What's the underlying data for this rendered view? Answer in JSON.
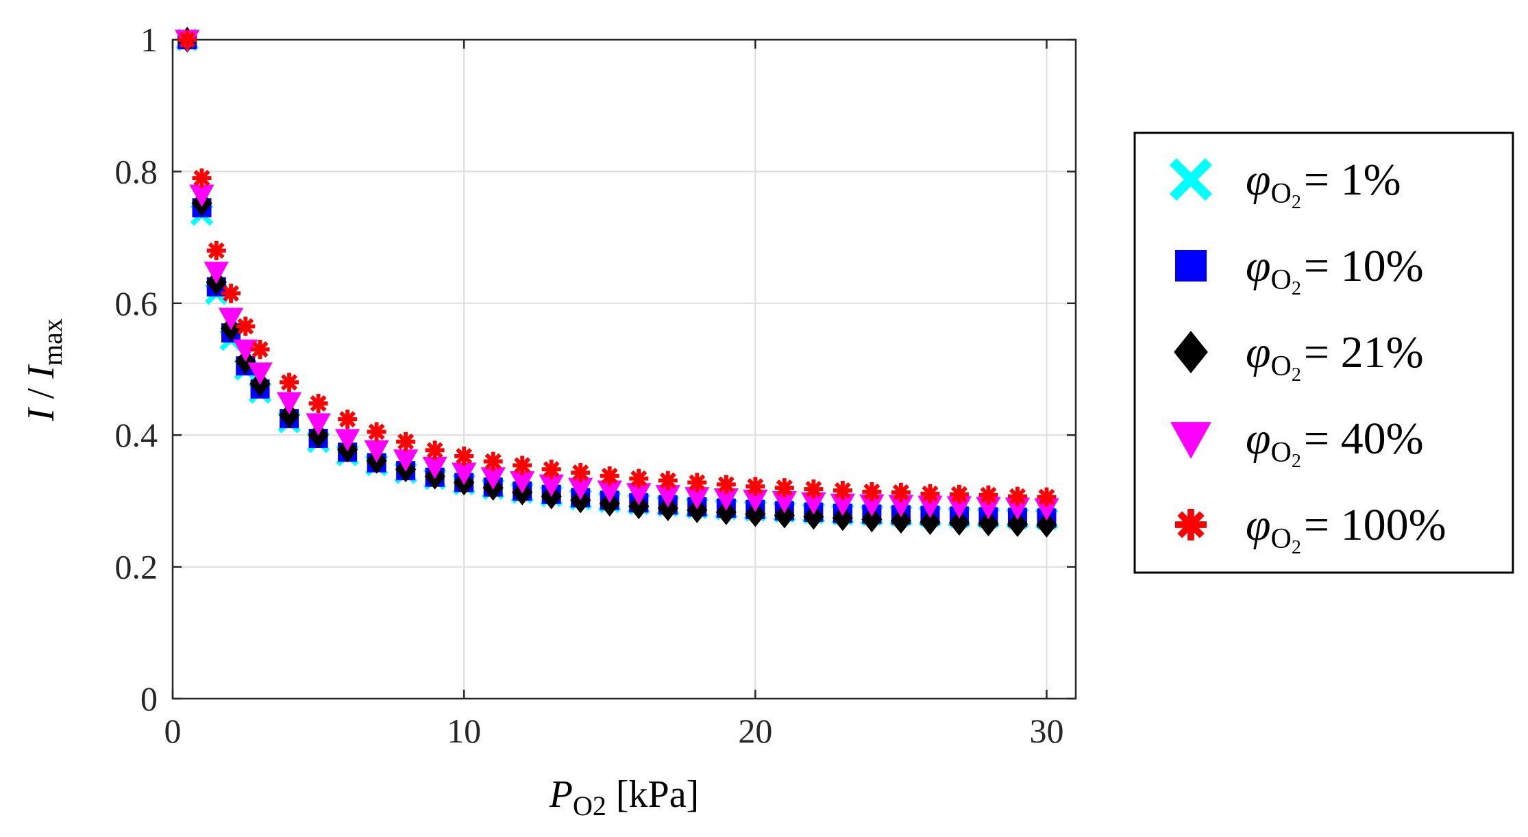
{
  "chart_data": {
    "type": "scatter",
    "title": "",
    "xlabel": {
      "main": "P",
      "sub": "O2",
      "unit": " [kPa]"
    },
    "ylabel": {
      "part1": "I",
      "sep": " / ",
      "part2": "I",
      "sub": "max"
    },
    "xlim": [
      0,
      31
    ],
    "ylim": [
      0,
      1
    ],
    "xticks": [
      "0",
      "10",
      "20",
      "30"
    ],
    "xtick_values": [
      0,
      10,
      20,
      30
    ],
    "yticks": [
      "0",
      "0.2",
      "0.4",
      "0.6",
      "0.8",
      "1"
    ],
    "ytick_values": [
      0,
      0.2,
      0.4,
      0.6,
      0.8,
      1
    ],
    "grid": true,
    "legend_position": "outside-right",
    "legend_symbol": "φ",
    "legend_sub": "O",
    "legend_subsub": "2",
    "x": [
      0.5,
      1,
      1.5,
      2,
      2.5,
      3,
      4,
      5,
      6,
      7,
      8,
      9,
      10,
      11,
      12,
      13,
      14,
      15,
      16,
      17,
      18,
      19,
      20,
      21,
      22,
      23,
      24,
      25,
      26,
      27,
      28,
      29,
      30
    ],
    "series": [
      {
        "name": "φO2 = 1%",
        "value_label": "= 1%",
        "marker": "x",
        "color": "#00ffff",
        "values": [
          1.0,
          0.735,
          0.615,
          0.545,
          0.5,
          0.465,
          0.42,
          0.39,
          0.37,
          0.355,
          0.343,
          0.334,
          0.326,
          0.319,
          0.313,
          0.308,
          0.303,
          0.299,
          0.296,
          0.293,
          0.29,
          0.288,
          0.286,
          0.284,
          0.282,
          0.28,
          0.279,
          0.278,
          0.277,
          0.276,
          0.275,
          0.274,
          0.273
        ]
      },
      {
        "name": "φO2 = 10%",
        "value_label": "= 10%",
        "marker": "square",
        "color": "#0000ff",
        "values": [
          1.0,
          0.745,
          0.625,
          0.555,
          0.505,
          0.47,
          0.425,
          0.395,
          0.374,
          0.358,
          0.346,
          0.336,
          0.328,
          0.321,
          0.315,
          0.31,
          0.305,
          0.301,
          0.297,
          0.294,
          0.291,
          0.289,
          0.287,
          0.285,
          0.283,
          0.281,
          0.28,
          0.279,
          0.278,
          0.277,
          0.276,
          0.275,
          0.274
        ]
      },
      {
        "name": "φO2 = 21%",
        "value_label": "= 21%",
        "marker": "diamond",
        "color": "#000000",
        "values": [
          1.0,
          0.752,
          0.632,
          0.562,
          0.512,
          0.478,
          0.43,
          0.4,
          0.378,
          0.361,
          0.348,
          0.337,
          0.328,
          0.32,
          0.313,
          0.307,
          0.301,
          0.296,
          0.292,
          0.289,
          0.286,
          0.283,
          0.28,
          0.278,
          0.276,
          0.274,
          0.272,
          0.27,
          0.268,
          0.267,
          0.266,
          0.265,
          0.264
        ]
      },
      {
        "name": "φO2 = 40%",
        "value_label": "= 40%",
        "marker": "triangle-down",
        "color": "#ff00ff",
        "values": [
          1.0,
          0.765,
          0.648,
          0.578,
          0.53,
          0.495,
          0.45,
          0.418,
          0.394,
          0.377,
          0.363,
          0.352,
          0.343,
          0.336,
          0.33,
          0.325,
          0.32,
          0.316,
          0.312,
          0.309,
          0.306,
          0.304,
          0.302,
          0.3,
          0.298,
          0.296,
          0.295,
          0.294,
          0.293,
          0.292,
          0.291,
          0.29,
          0.289
        ]
      },
      {
        "name": "φO2 = 100%",
        "value_label": "= 100%",
        "marker": "asterisk",
        "color": "#ff0000",
        "values": [
          1.0,
          0.79,
          0.68,
          0.615,
          0.565,
          0.53,
          0.48,
          0.448,
          0.424,
          0.405,
          0.39,
          0.377,
          0.368,
          0.36,
          0.354,
          0.348,
          0.343,
          0.338,
          0.334,
          0.331,
          0.328,
          0.325,
          0.322,
          0.32,
          0.318,
          0.316,
          0.314,
          0.313,
          0.311,
          0.31,
          0.309,
          0.307,
          0.306
        ]
      }
    ]
  }
}
